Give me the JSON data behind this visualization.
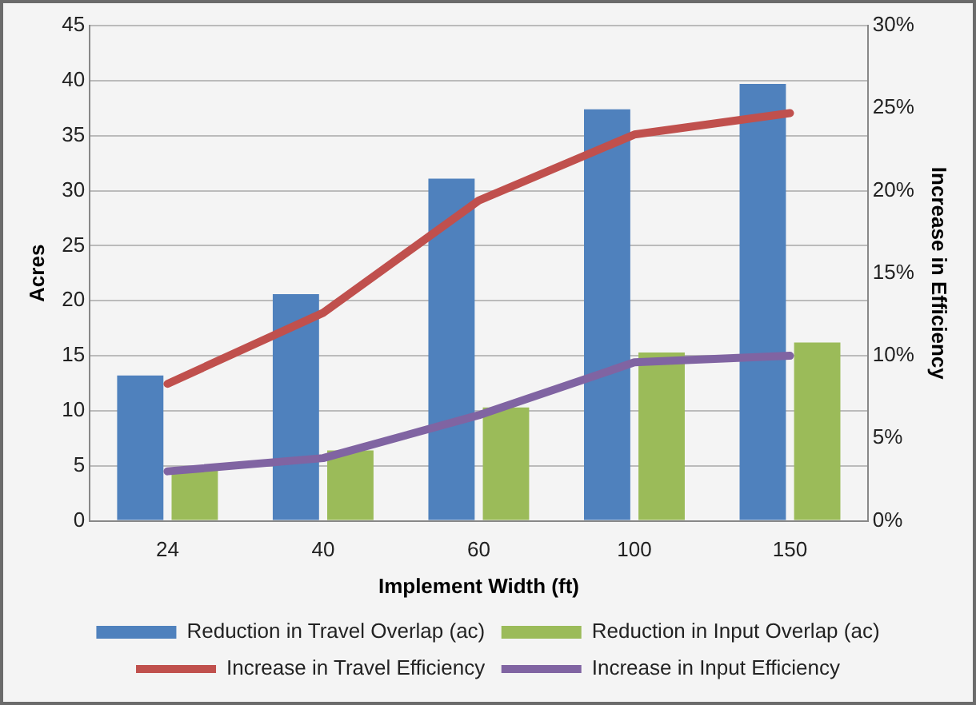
{
  "chart_data": {
    "type": "bar",
    "xlabel": "Implement Width (ft)",
    "ylabel": "Acres",
    "y2label": "Increase in Efficiency",
    "categories": [
      "24",
      "40",
      "60",
      "100",
      "150"
    ],
    "series": [
      {
        "name": "Reduction in Travel Overlap (ac)",
        "color": "#4f81bd",
        "values": [
          13.2,
          20.6,
          31.1,
          37.4,
          39.7
        ]
      },
      {
        "name": "Reduction in Input Overlap (ac)",
        "color": "#9bbb59",
        "values": [
          4.8,
          6.4,
          10.3,
          15.3,
          16.2
        ]
      },
      {
        "name": "Increase in Travel Efficiency",
        "type": "line",
        "axis": "y2",
        "color": "#c0504d",
        "values": [
          8.3,
          12.6,
          19.4,
          23.4,
          24.7
        ]
      },
      {
        "name": "Increase in Input Efficiency",
        "type": "line",
        "axis": "y2",
        "color": "#8064a2",
        "values": [
          3.0,
          3.8,
          6.4,
          9.6,
          10.0
        ]
      }
    ],
    "ylim": [
      0,
      45
    ],
    "yticks": [
      0,
      5,
      10,
      15,
      20,
      25,
      30,
      35,
      40,
      45
    ],
    "y2lim": [
      0,
      30
    ],
    "y2ticks": [
      {
        "value": 0,
        "label": "0%"
      },
      {
        "value": 5,
        "label": "5%"
      },
      {
        "value": 10,
        "label": "10%"
      },
      {
        "value": 15,
        "label": "15%"
      },
      {
        "value": 20,
        "label": "20%"
      },
      {
        "value": 25,
        "label": "25%"
      },
      {
        "value": 30,
        "label": "30%"
      }
    ],
    "grid": "y",
    "legend": "bottom",
    "marker": "none"
  }
}
